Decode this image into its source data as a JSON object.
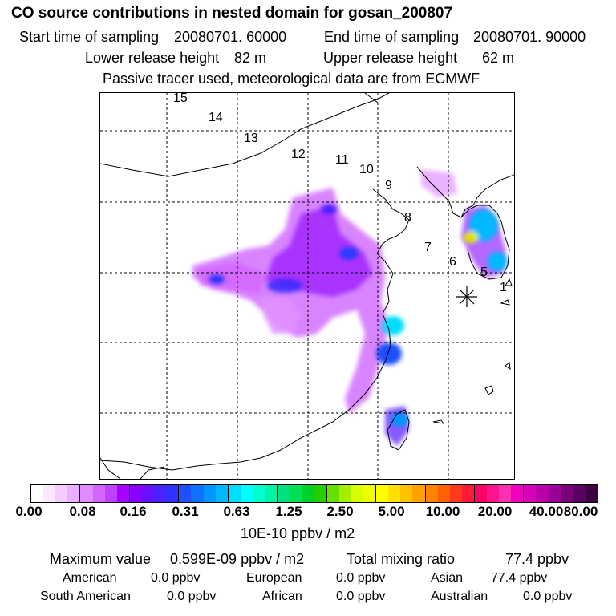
{
  "header": {
    "title": "CO  source contributions in nested domain for gosan_200807",
    "start_label": "Start time of sampling",
    "start_value": "20080701. 60000",
    "end_label": "End time of sampling",
    "end_value": "20080701. 90000",
    "lower_label": "Lower release height",
    "lower_value": "82 m",
    "upper_label": "Upper release height",
    "upper_value": "62 m",
    "info": "Passive tracer used, meteorological data are from ECMWF"
  },
  "map": {
    "trajectory_labels": [
      "1",
      "5",
      "6",
      "7",
      "8",
      "9",
      "10",
      "11",
      "12",
      "13",
      "14",
      "15"
    ],
    "receptor_marker": "star-icon"
  },
  "colorbar": {
    "tick_labels": [
      "0.00",
      "0.08",
      "0.16",
      "0.31",
      "0.63",
      "1.25",
      "2.50",
      "5.00",
      "10.00",
      "20.00",
      "40.00",
      "80.00"
    ],
    "colors": [
      "#ffffff",
      "#fbe8ff",
      "#f4ccff",
      "#eab0ff",
      "#de8cff",
      "#d266ff",
      "#c040ff",
      "#a800ff",
      "#8a00ff",
      "#6a10ff",
      "#4a22ff",
      "#3030ff",
      "#1f50ff",
      "#1070ff",
      "#0095ff",
      "#00b8ff",
      "#00ddff",
      "#00ffff",
      "#00ffcc",
      "#00f4a6",
      "#00e080",
      "#00e055",
      "#00d02a",
      "#22d000",
      "#66e000",
      "#a4ee00",
      "#d8ff00",
      "#f0ff00",
      "#ffff00",
      "#ffe000",
      "#ffc200",
      "#ffa200",
      "#ff8200",
      "#ff6000",
      "#ff3a1a",
      "#ff1a3a",
      "#ff0066",
      "#ff1490",
      "#ff30b0",
      "#f000c0",
      "#d800b8",
      "#b800a8",
      "#980098",
      "#780078",
      "#5a0060",
      "#3c0040"
    ],
    "units": "10E-10 ppbv / m2"
  },
  "stats": {
    "max_label": "Maximum value",
    "max_value": "0.599E-09 ppbv / m2",
    "total_label": "Total mixing ratio",
    "total_value": "77.4 ppbv",
    "regions": [
      {
        "name": "American",
        "value": "0.0 ppbv"
      },
      {
        "name": "European",
        "value": "0.0 ppbv"
      },
      {
        "name": "Asian",
        "value": "77.4 ppbv"
      },
      {
        "name": "South American",
        "value": "0.0 ppbv"
      },
      {
        "name": "African",
        "value": "0.0 ppbv"
      },
      {
        "name": "Australian",
        "value": "0.0 ppbv"
      }
    ]
  }
}
